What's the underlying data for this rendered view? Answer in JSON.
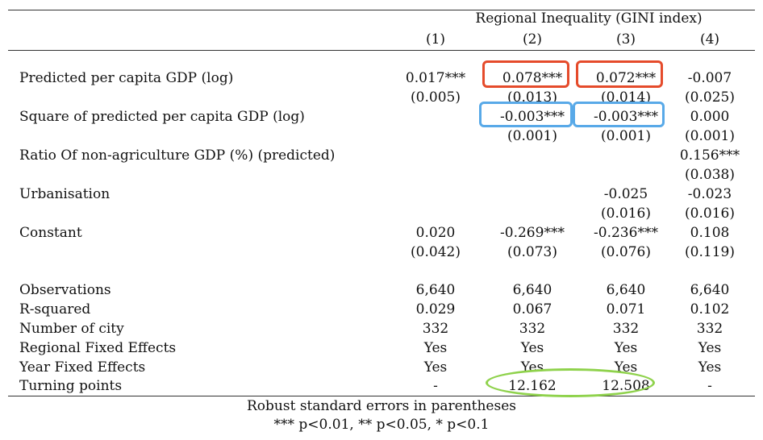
{
  "table": {
    "header_group": "Regional Inequality (GINI index)",
    "columns": [
      "(1)",
      "(2)",
      "(3)",
      "(4)"
    ],
    "rows": [
      {
        "label": "Predicted per capita GDP (log)",
        "values": [
          "0.017***",
          "0.078***",
          "0.072***",
          "-0.007"
        ]
      },
      {
        "label": "",
        "values": [
          "(0.005)",
          "(0.013)",
          "(0.014)",
          "(0.025)"
        ]
      },
      {
        "label": "Square of predicted per capita GDP (log)",
        "values": [
          "",
          "-0.003***",
          "-0.003***",
          "0.000"
        ]
      },
      {
        "label": "",
        "values": [
          "",
          "(0.001)",
          "(0.001)",
          "(0.001)"
        ]
      },
      {
        "label": "Ratio Of non-agriculture GDP (%) (predicted)",
        "values": [
          "",
          "",
          "",
          "0.156***"
        ]
      },
      {
        "label": "",
        "values": [
          "",
          "",
          "",
          "(0.038)"
        ]
      },
      {
        "label": "Urbanisation",
        "values": [
          "",
          "",
          "-0.025",
          "-0.023"
        ]
      },
      {
        "label": "",
        "values": [
          "",
          "",
          "(0.016)",
          "(0.016)"
        ]
      },
      {
        "label": "Constant",
        "values": [
          "0.020",
          "-0.269***",
          "-0.236***",
          "0.108"
        ]
      },
      {
        "label": "",
        "values": [
          "(0.042)",
          "(0.073)",
          "(0.076)",
          "(0.119)"
        ]
      }
    ],
    "stats": [
      {
        "label": "Observations",
        "values": [
          "6,640",
          "6,640",
          "6,640",
          "6,640"
        ]
      },
      {
        "label": "R-squared",
        "values": [
          "0.029",
          "0.067",
          "0.071",
          "0.102"
        ]
      },
      {
        "label": "Number of city",
        "values": [
          "332",
          "332",
          "332",
          "332"
        ]
      },
      {
        "label": "Regional Fixed Effects",
        "values": [
          "Yes",
          "Yes",
          "Yes",
          "Yes"
        ]
      },
      {
        "label": "Year Fixed Effects",
        "values": [
          "Yes",
          "Yes",
          "Yes",
          "Yes"
        ]
      },
      {
        "label": "Turning points",
        "values": [
          "-",
          "12.162",
          "12.508",
          "-"
        ]
      }
    ]
  },
  "notes": {
    "line1": "Robust standard errors in parentheses",
    "line2": "*** p<0.01, ** p<0.05, * p<0.1"
  },
  "highlight_colors": {
    "red": "#e54b2b",
    "blue": "#58a9e8",
    "green": "#8fd24c"
  }
}
